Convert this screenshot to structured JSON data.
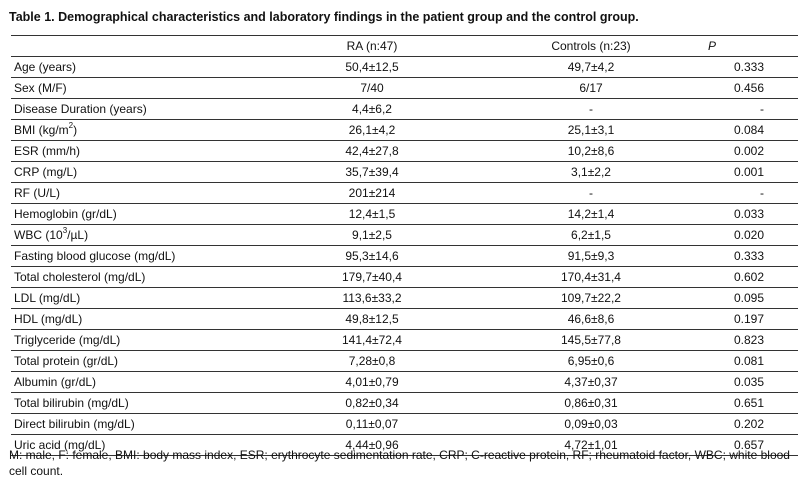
{
  "caption": "Table 1. Demographical characteristics and laboratory findings in the patient group and the control group.",
  "table": {
    "headers": {
      "variable": "",
      "ra": "RA (n:47)",
      "controls": "Controls (n:23)",
      "p": "P"
    },
    "rows": [
      {
        "label": "Age (years)",
        "ra": "50,4±12,5",
        "controls": "49,7±4,2",
        "p": "0.333"
      },
      {
        "label": "Sex (M/F)",
        "ra": "7/40",
        "controls": "6/17",
        "p": "0.456"
      },
      {
        "label": "Disease Duration (years)",
        "ra": "4,4±6,2",
        "controls": "-",
        "p": "-"
      },
      {
        "label": "BMI (kg/m",
        "label_sup": "2",
        "label_after": ")",
        "ra": "26,1±4,2",
        "controls": "25,1±3,1",
        "p": "0.084"
      },
      {
        "label": "ESR (mm/h)",
        "ra": "42,4±27,8",
        "controls": "10,2±8,6",
        "p": "0.002"
      },
      {
        "label": "CRP (mg/L)",
        "ra": "35,7±39,4",
        "controls": "3,1±2,2",
        "p": "0.001"
      },
      {
        "label": "RF (U/L)",
        "ra": "201±214",
        "controls": "-",
        "p": "-"
      },
      {
        "label": "Hemoglobin (gr/dL)",
        "ra": "12,4±1,5",
        "controls": "14,2±1,4",
        "p": "0.033"
      },
      {
        "label": "WBC (10",
        "label_sup": "3",
        "label_after": "/µL)",
        "ra": "9,1±2,5",
        "controls": "6,2±1,5",
        "p": "0.020"
      },
      {
        "label": "Fasting blood glucose (mg/dL)",
        "ra": "95,3±14,6",
        "controls": "91,5±9,3",
        "p": "0.333"
      },
      {
        "label": "Total cholesterol (mg/dL)",
        "ra": "179,7±40,4",
        "controls": "170,4±31,4",
        "p": "0.602"
      },
      {
        "label": "LDL (mg/dL)",
        "ra": "113,6±33,2",
        "controls": "109,7±22,2",
        "p": "0.095"
      },
      {
        "label": "HDL (mg/dL)",
        "ra": "49,8±12,5",
        "controls": "46,6±8,6",
        "p": "0.197"
      },
      {
        "label": "Triglyceride (mg/dL)",
        "ra": "141,4±72,4",
        "controls": "145,5±77,8",
        "p": "0.823"
      },
      {
        "label": "Total protein (gr/dL)",
        "ra": "7,28±0,8",
        "controls": "6,95±0,6",
        "p": "0.081"
      },
      {
        "label": "Albumin (gr/dL)",
        "ra": "4,01±0,79",
        "controls": "4,37±0,37",
        "p": "0.035"
      },
      {
        "label": "Total bilirubin (mg/dL)",
        "ra": "0,82±0,34",
        "controls": "0,86±0,31",
        "p": "0.651"
      },
      {
        "label": "Direct bilirubin (mg/dL)",
        "ra": "0,11±0,07",
        "controls": "0,09±0,03",
        "p": "0.202"
      },
      {
        "label": "Uric acid (mg/dL)",
        "ra": "4,44±0,96",
        "controls": "4,72±1,01",
        "p": "0.657"
      }
    ]
  },
  "footnote": "M: male, F: female, BMI: body mass index, ESR; erythrocyte sedimentation rate, CRP; C-reactive protein, RF; rheumatoid factor, WBC; white blood cell count."
}
